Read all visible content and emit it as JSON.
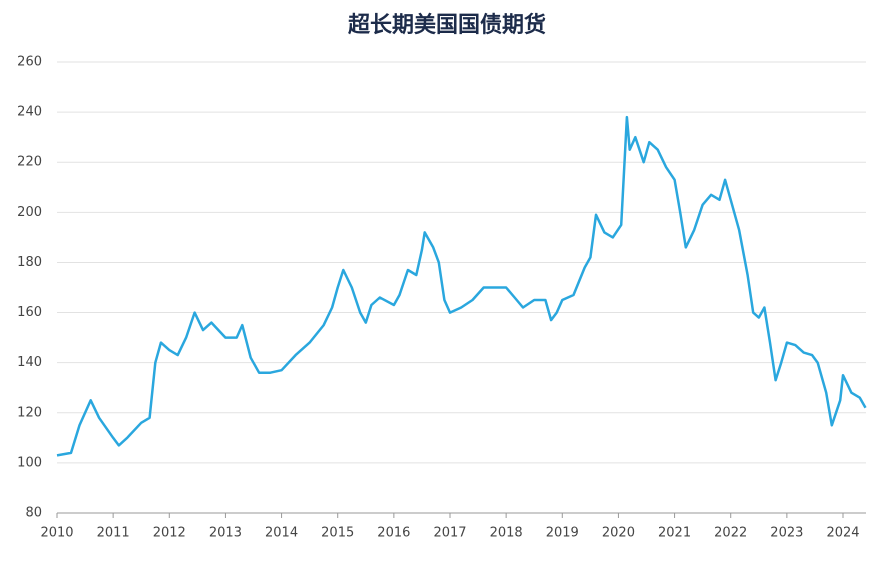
{
  "chart_data": {
    "type": "line",
    "title": "超长期美国国债期货",
    "x": [
      2010.0,
      2010.25,
      2010.4,
      2010.6,
      2010.75,
      2011.0,
      2011.1,
      2011.25,
      2011.5,
      2011.65,
      2011.75,
      2011.85,
      2012.0,
      2012.15,
      2012.3,
      2012.45,
      2012.6,
      2012.75,
      2013.0,
      2013.2,
      2013.3,
      2013.45,
      2013.6,
      2013.8,
      2014.0,
      2014.25,
      2014.5,
      2014.75,
      2014.9,
      2015.0,
      2015.1,
      2015.25,
      2015.4,
      2015.5,
      2015.6,
      2015.75,
      2016.0,
      2016.1,
      2016.25,
      2016.4,
      2016.5,
      2016.55,
      2016.7,
      2016.8,
      2016.9,
      2017.0,
      2017.2,
      2017.4,
      2017.6,
      2017.8,
      2018.0,
      2018.15,
      2018.3,
      2018.5,
      2018.7,
      2018.8,
      2018.9,
      2019.0,
      2019.2,
      2019.4,
      2019.5,
      2019.6,
      2019.75,
      2019.9,
      2020.05,
      2020.15,
      2020.2,
      2020.3,
      2020.45,
      2020.55,
      2020.7,
      2020.85,
      2021.0,
      2021.1,
      2021.2,
      2021.35,
      2021.5,
      2021.65,
      2021.8,
      2021.9,
      2022.0,
      2022.15,
      2022.3,
      2022.4,
      2022.5,
      2022.6,
      2022.7,
      2022.8,
      2022.9,
      2023.0,
      2023.15,
      2023.3,
      2023.45,
      2023.55,
      2023.7,
      2023.8,
      2023.95,
      2024.0,
      2024.15,
      2024.3,
      2024.4
    ],
    "series": [
      {
        "color": "#2aa7de",
        "values": [
          103,
          104,
          115,
          125,
          118,
          110,
          107,
          110,
          116,
          118,
          140,
          148,
          145,
          143,
          150,
          160,
          153,
          156,
          150,
          150,
          155,
          142,
          136,
          136,
          137,
          143,
          148,
          155,
          162,
          170,
          177,
          170,
          160,
          156,
          163,
          166,
          163,
          167,
          177,
          175,
          185,
          192,
          186,
          180,
          165,
          160,
          162,
          165,
          170,
          170,
          170,
          166,
          162,
          165,
          165,
          157,
          160,
          165,
          167,
          178,
          182,
          199,
          192,
          190,
          195,
          238,
          225,
          230,
          220,
          228,
          225,
          218,
          213,
          200,
          186,
          193,
          203,
          207,
          205,
          213,
          205,
          193,
          175,
          160,
          158,
          162,
          148,
          133,
          140,
          148,
          147,
          144,
          143,
          140,
          128,
          115,
          125,
          135,
          128,
          126,
          122
        ]
      }
    ],
    "xlim": [
      2010,
      2024.4
    ],
    "xticks": [
      2010,
      2011,
      2012,
      2013,
      2014,
      2015,
      2016,
      2017,
      2018,
      2019,
      2020,
      2021,
      2022,
      2023,
      2024
    ],
    "ylim": [
      80,
      260
    ],
    "yticks": [
      80,
      100,
      120,
      140,
      160,
      180,
      200,
      220,
      240,
      260
    ],
    "grid": true
  }
}
